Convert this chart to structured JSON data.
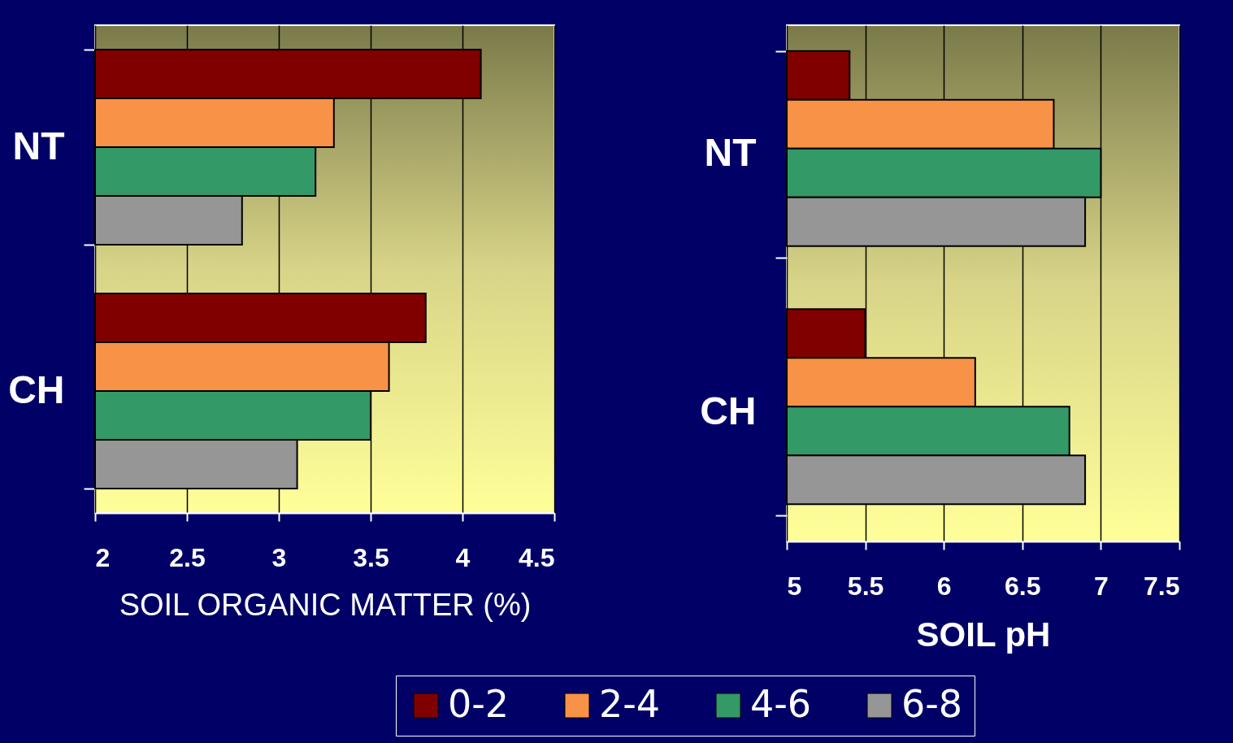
{
  "chart_data": [
    {
      "type": "bar",
      "orientation": "horizontal",
      "categories": [
        "NT",
        "CH"
      ],
      "xlabel": "SOIL ORGANIC MATTER (%)",
      "xlim": [
        2,
        4.5
      ],
      "xticks": [
        2,
        2.5,
        3,
        3.5,
        4,
        4.5
      ],
      "grid": "x",
      "legend": "bottom",
      "series": [
        {
          "name": "0-2",
          "color": "#800000",
          "values": [
            4.1,
            3.8
          ]
        },
        {
          "name": "2-4",
          "color": "#f79247",
          "values": [
            3.3,
            3.6
          ]
        },
        {
          "name": "4-6",
          "color": "#339966",
          "values": [
            3.2,
            3.5
          ]
        },
        {
          "name": "6-8",
          "color": "#969696",
          "values": [
            2.8,
            3.1
          ]
        }
      ]
    },
    {
      "type": "bar",
      "orientation": "horizontal",
      "categories": [
        "NT",
        "CH"
      ],
      "xlabel": "SOIL pH",
      "xlim": [
        5,
        7.5
      ],
      "xticks": [
        5,
        5.5,
        6,
        6.5,
        7,
        7.5
      ],
      "grid": "x",
      "legend": "bottom",
      "series": [
        {
          "name": "0-2",
          "color": "#800000",
          "values": [
            5.4,
            5.5
          ]
        },
        {
          "name": "2-4",
          "color": "#f79247",
          "values": [
            6.7,
            6.2
          ]
        },
        {
          "name": "4-6",
          "color": "#339966",
          "values": [
            7.0,
            6.8
          ]
        },
        {
          "name": "6-8",
          "color": "#969696",
          "values": [
            6.9,
            6.9
          ]
        }
      ]
    }
  ]
}
